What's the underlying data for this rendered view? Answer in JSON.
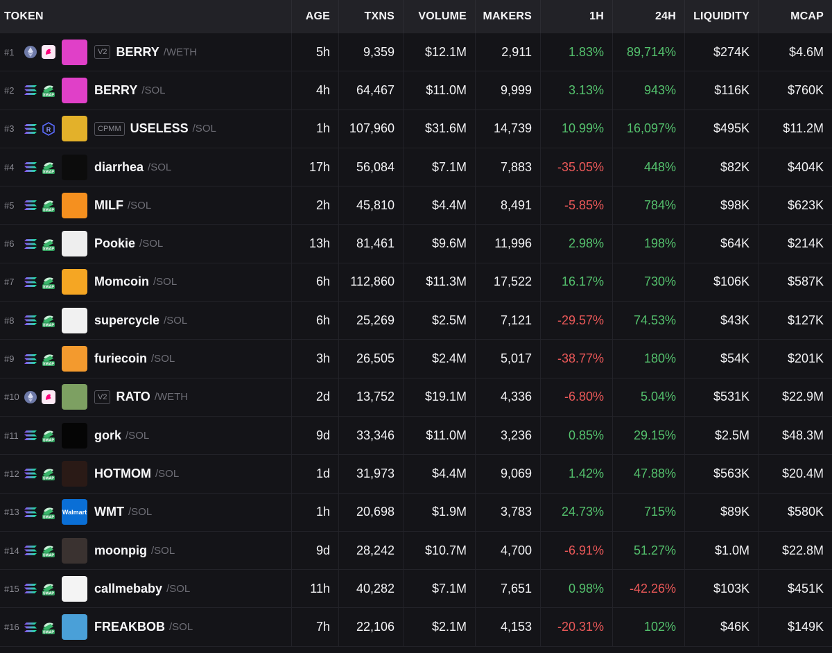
{
  "header": {
    "token": "TOKEN",
    "age": "AGE",
    "txns": "TXNS",
    "volume": "VOLUME",
    "makers": "MAKERS",
    "h1": "1H",
    "h24": "24H",
    "liquidity": "LIQUIDITY",
    "mcap": "MCAP"
  },
  "rows": [
    {
      "rank": "#1",
      "chain": "eth",
      "dex": "uniswap",
      "badge": "V2",
      "symbol": "BERRY",
      "quote": "/WETH",
      "avatar_color": "#e040c8",
      "avatar_text": "",
      "age": "5h",
      "txns": "9,359",
      "volume": "$12.1M",
      "makers": "2,911",
      "h1": "1.83%",
      "h1_dir": "pos",
      "h24": "89,714%",
      "h24_dir": "pos",
      "liquidity": "$274K",
      "mcap": "$4.6M"
    },
    {
      "rank": "#2",
      "chain": "sol",
      "dex": "swap",
      "badge": "",
      "symbol": "BERRY",
      "quote": "/SOL",
      "avatar_color": "#e040c8",
      "avatar_text": "",
      "age": "4h",
      "txns": "64,467",
      "volume": "$11.0M",
      "makers": "9,999",
      "h1": "3.13%",
      "h1_dir": "pos",
      "h24": "943%",
      "h24_dir": "pos",
      "liquidity": "$116K",
      "mcap": "$760K"
    },
    {
      "rank": "#3",
      "chain": "sol",
      "dex": "raydium",
      "badge": "CPMM",
      "symbol": "USELESS",
      "quote": "/SOL",
      "avatar_color": "#e3b12a",
      "avatar_text": "",
      "age": "1h",
      "txns": "107,960",
      "volume": "$31.6M",
      "makers": "14,739",
      "h1": "10.99%",
      "h1_dir": "pos",
      "h24": "16,097%",
      "h24_dir": "pos",
      "liquidity": "$495K",
      "mcap": "$11.2M"
    },
    {
      "rank": "#4",
      "chain": "sol",
      "dex": "swap",
      "badge": "",
      "symbol": "diarrhea",
      "quote": "/SOL",
      "avatar_color": "#0c0c0c",
      "avatar_text": "",
      "age": "17h",
      "txns": "56,084",
      "volume": "$7.1M",
      "makers": "7,883",
      "h1": "-35.05%",
      "h1_dir": "neg",
      "h24": "448%",
      "h24_dir": "pos",
      "liquidity": "$82K",
      "mcap": "$404K"
    },
    {
      "rank": "#5",
      "chain": "sol",
      "dex": "swap",
      "badge": "",
      "symbol": "MILF",
      "quote": "/SOL",
      "avatar_color": "#f5901f",
      "avatar_text": "",
      "age": "2h",
      "txns": "45,810",
      "volume": "$4.4M",
      "makers": "8,491",
      "h1": "-5.85%",
      "h1_dir": "neg",
      "h24": "784%",
      "h24_dir": "pos",
      "liquidity": "$98K",
      "mcap": "$623K"
    },
    {
      "rank": "#6",
      "chain": "sol",
      "dex": "swap",
      "badge": "",
      "symbol": "Pookie",
      "quote": "/SOL",
      "avatar_color": "#eeeeee",
      "avatar_text": "",
      "age": "13h",
      "txns": "81,461",
      "volume": "$9.6M",
      "makers": "11,996",
      "h1": "2.98%",
      "h1_dir": "pos",
      "h24": "198%",
      "h24_dir": "pos",
      "liquidity": "$64K",
      "mcap": "$214K"
    },
    {
      "rank": "#7",
      "chain": "sol",
      "dex": "swap",
      "badge": "",
      "symbol": "Momcoin",
      "quote": "/SOL",
      "avatar_color": "#f5a623",
      "avatar_text": "",
      "age": "6h",
      "txns": "112,860",
      "volume": "$11.3M",
      "makers": "17,522",
      "h1": "16.17%",
      "h1_dir": "pos",
      "h24": "730%",
      "h24_dir": "pos",
      "liquidity": "$106K",
      "mcap": "$587K"
    },
    {
      "rank": "#8",
      "chain": "sol",
      "dex": "swap",
      "badge": "",
      "symbol": "supercycle",
      "quote": "/SOL",
      "avatar_color": "#f1f1f1",
      "avatar_text": "",
      "age": "6h",
      "txns": "25,269",
      "volume": "$2.5M",
      "makers": "7,121",
      "h1": "-29.57%",
      "h1_dir": "neg",
      "h24": "74.53%",
      "h24_dir": "pos",
      "liquidity": "$43K",
      "mcap": "$127K"
    },
    {
      "rank": "#9",
      "chain": "sol",
      "dex": "swap",
      "badge": "",
      "symbol": "furiecoin",
      "quote": "/SOL",
      "avatar_color": "#f39a2e",
      "avatar_text": "",
      "age": "3h",
      "txns": "26,505",
      "volume": "$2.4M",
      "makers": "5,017",
      "h1": "-38.77%",
      "h1_dir": "neg",
      "h24": "180%",
      "h24_dir": "pos",
      "liquidity": "$54K",
      "mcap": "$201K"
    },
    {
      "rank": "#10",
      "chain": "eth",
      "dex": "uniswap",
      "badge": "V2",
      "symbol": "RATO",
      "quote": "/WETH",
      "avatar_color": "#7da062",
      "avatar_text": "",
      "age": "2d",
      "txns": "13,752",
      "volume": "$19.1M",
      "makers": "4,336",
      "h1": "-6.80%",
      "h1_dir": "neg",
      "h24": "5.04%",
      "h24_dir": "pos",
      "liquidity": "$531K",
      "mcap": "$22.9M"
    },
    {
      "rank": "#11",
      "chain": "sol",
      "dex": "swap",
      "badge": "",
      "symbol": "gork",
      "quote": "/SOL",
      "avatar_color": "#050505",
      "avatar_text": "",
      "age": "9d",
      "txns": "33,346",
      "volume": "$11.0M",
      "makers": "3,236",
      "h1": "0.85%",
      "h1_dir": "pos",
      "h24": "29.15%",
      "h24_dir": "pos",
      "liquidity": "$2.5M",
      "mcap": "$48.3M"
    },
    {
      "rank": "#12",
      "chain": "sol",
      "dex": "swap",
      "badge": "",
      "symbol": "HOTMOM",
      "quote": "/SOL",
      "avatar_color": "#2a1a16",
      "avatar_text": "",
      "age": "1d",
      "txns": "31,973",
      "volume": "$4.4M",
      "makers": "9,069",
      "h1": "1.42%",
      "h1_dir": "pos",
      "h24": "47.88%",
      "h24_dir": "pos",
      "liquidity": "$563K",
      "mcap": "$20.4M"
    },
    {
      "rank": "#13",
      "chain": "sol",
      "dex": "swap",
      "badge": "",
      "symbol": "WMT",
      "quote": "/SOL",
      "avatar_color": "#0a6fd6",
      "avatar_text": "Walmart",
      "age": "1h",
      "txns": "20,698",
      "volume": "$1.9M",
      "makers": "3,783",
      "h1": "24.73%",
      "h1_dir": "pos",
      "h24": "715%",
      "h24_dir": "pos",
      "liquidity": "$89K",
      "mcap": "$580K"
    },
    {
      "rank": "#14",
      "chain": "sol",
      "dex": "swap",
      "badge": "",
      "symbol": "moonpig",
      "quote": "/SOL",
      "avatar_color": "#3a3230",
      "avatar_text": "",
      "age": "9d",
      "txns": "28,242",
      "volume": "$10.7M",
      "makers": "4,700",
      "h1": "-6.91%",
      "h1_dir": "neg",
      "h24": "51.27%",
      "h24_dir": "pos",
      "liquidity": "$1.0M",
      "mcap": "$22.8M"
    },
    {
      "rank": "#15",
      "chain": "sol",
      "dex": "swap",
      "badge": "",
      "symbol": "callmebaby",
      "quote": "/SOL",
      "avatar_color": "#f4f4f4",
      "avatar_text": "",
      "age": "11h",
      "txns": "40,282",
      "volume": "$7.1M",
      "makers": "7,651",
      "h1": "0.98%",
      "h1_dir": "pos",
      "h24": "-42.26%",
      "h24_dir": "neg",
      "liquidity": "$103K",
      "mcap": "$451K"
    },
    {
      "rank": "#16",
      "chain": "sol",
      "dex": "swap",
      "badge": "",
      "symbol": "FREAKBOB",
      "quote": "/SOL",
      "avatar_color": "#4aa0d8",
      "avatar_text": "",
      "age": "7h",
      "txns": "22,106",
      "volume": "$2.1M",
      "makers": "4,153",
      "h1": "-20.31%",
      "h1_dir": "neg",
      "h24": "102%",
      "h24_dir": "pos",
      "liquidity": "$46K",
      "mcap": "$149K"
    }
  ],
  "colors": {
    "positive": "#54c16d",
    "negative": "#ea5858",
    "header_bg": "#222227",
    "row_bg": "#141418"
  },
  "icons": {
    "eth": "ethereum-icon",
    "sol": "solana-icon",
    "uniswap": "uniswap-icon",
    "swap": "swap-dex-icon",
    "raydium": "raydium-icon"
  },
  "dex_labels": {
    "swap": "SWAP"
  }
}
